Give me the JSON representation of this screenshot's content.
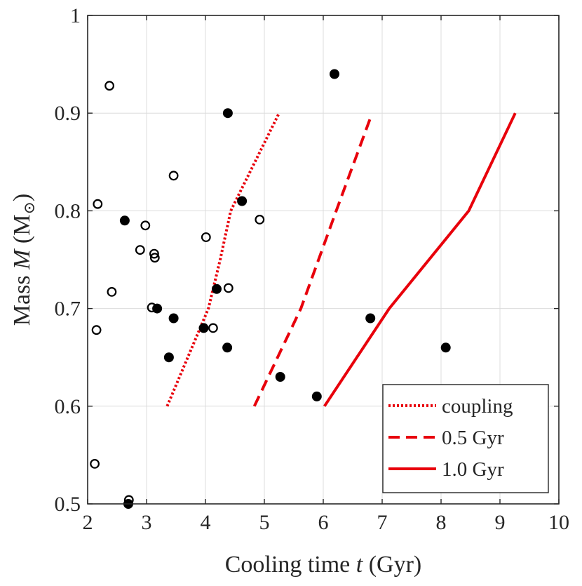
{
  "chart_data": {
    "type": "scatter",
    "title": "",
    "xlabel": "Cooling time ",
    "xlabel_var": "t",
    "xlabel_unit": " (Gyr)",
    "ylabel": "Mass ",
    "ylabel_var": "M",
    "ylabel_unit": " (M",
    "ylabel_sub": "⊙",
    "ylabel_close": ")",
    "xlim": [
      2,
      10
    ],
    "ylim": [
      0.5,
      1.0
    ],
    "grid": true,
    "legend_position": "bottom-right",
    "x_ticks": [
      2,
      3,
      4,
      5,
      6,
      7,
      8,
      9,
      10
    ],
    "x_tick_labels": [
      "2",
      "3",
      "4",
      "5",
      "6",
      "7",
      "8",
      "9",
      "10"
    ],
    "y_ticks": [
      0.5,
      0.6,
      0.7,
      0.8,
      0.9,
      1.0
    ],
    "y_tick_labels": [
      "0.5",
      "0.6",
      "0.7",
      "0.8",
      "0.9",
      "1"
    ],
    "series": [
      {
        "name": "filled-points",
        "kind": "scatter",
        "marker": "filled-circle",
        "color": "#000000",
        "points": [
          [
            2.63,
            0.79
          ],
          [
            3.18,
            0.7
          ],
          [
            3.46,
            0.69
          ],
          [
            3.38,
            0.65
          ],
          [
            2.69,
            0.5
          ],
          [
            3.97,
            0.68
          ],
          [
            4.19,
            0.72
          ],
          [
            4.37,
            0.66
          ],
          [
            4.38,
            0.9
          ],
          [
            4.62,
            0.81
          ],
          [
            5.27,
            0.63
          ],
          [
            5.89,
            0.61
          ],
          [
            6.19,
            0.94
          ],
          [
            6.8,
            0.69
          ],
          [
            8.08,
            0.66
          ]
        ]
      },
      {
        "name": "open-points",
        "kind": "scatter",
        "marker": "open-circle",
        "color": "#000000",
        "points": [
          [
            2.37,
            0.928
          ],
          [
            2.17,
            0.807
          ],
          [
            2.15,
            0.678
          ],
          [
            2.12,
            0.541
          ],
          [
            2.41,
            0.717
          ],
          [
            2.7,
            0.504
          ],
          [
            2.89,
            0.76
          ],
          [
            2.98,
            0.785
          ],
          [
            3.09,
            0.701
          ],
          [
            3.13,
            0.756
          ],
          [
            3.14,
            0.752
          ],
          [
            3.46,
            0.836
          ],
          [
            4.01,
            0.773
          ],
          [
            4.13,
            0.68
          ],
          [
            4.39,
            0.721
          ],
          [
            4.92,
            0.791
          ]
        ]
      },
      {
        "name": "coupling",
        "kind": "line",
        "style": "dotted",
        "color": "#e8000b",
        "points": [
          [
            3.35,
            0.6
          ],
          [
            4.05,
            0.7
          ],
          [
            4.25,
            0.75
          ],
          [
            4.43,
            0.8
          ],
          [
            5.25,
            0.9
          ]
        ]
      },
      {
        "name": "0.5 Gyr",
        "kind": "line",
        "style": "dashed",
        "color": "#e8000b",
        "points": [
          [
            4.83,
            0.6
          ],
          [
            5.62,
            0.7
          ],
          [
            6.22,
            0.8
          ],
          [
            6.8,
            0.895
          ]
        ]
      },
      {
        "name": "1.0 Gyr",
        "kind": "line",
        "style": "solid",
        "color": "#e8000b",
        "points": [
          [
            6.02,
            0.6
          ],
          [
            7.12,
            0.7
          ],
          [
            8.47,
            0.8
          ],
          [
            9.26,
            0.9
          ]
        ]
      }
    ],
    "legend": [
      {
        "label": "coupling",
        "style": "dotted",
        "color": "#e8000b"
      },
      {
        "label": "0.5 Gyr",
        "style": "dashed",
        "color": "#e8000b"
      },
      {
        "label": "1.0 Gyr",
        "style": "solid",
        "color": "#e8000b"
      }
    ]
  }
}
